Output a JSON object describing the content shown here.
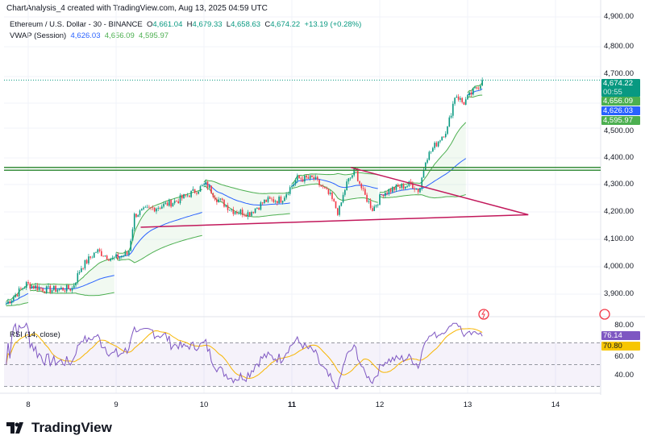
{
  "header": {
    "title": "ChartAnalysis_4 created with TradingView.com, Aug 13, 2025 04:59 UTC"
  },
  "legend": {
    "symbol": "Ethereum / U.S. Dollar - 30 - BINANCE",
    "o_label": "O",
    "o": "4,661.04",
    "h_label": "H",
    "h": "4,679.33",
    "l_label": "L",
    "l": "4,658.63",
    "c_label": "C",
    "c": "4,674.22",
    "change": "+13.19 (+0.28%)",
    "vwap_label": "VWAP (Session)",
    "vwap": "4,626.03",
    "vwap_upper": "4,656.09",
    "vwap_lower": "4,595.97"
  },
  "price_tags": {
    "last": "4,674.22",
    "countdown": "00:55",
    "upper": "4,656.09",
    "vwap": "4,626.03",
    "lower": "4,595.97"
  },
  "rsi": {
    "label": "RSI (14, close)",
    "value": "76.14",
    "ma": "70.80",
    "axis": [
      "80.00",
      "60.00",
      "40.00"
    ]
  },
  "colors": {
    "up": "#089981",
    "down": "#f23645",
    "vwap": "#2962ff",
    "band": "#4caf50",
    "rsi": "#7e57c2",
    "rsi_ma": "#f7b500",
    "trendline": "#c2185b",
    "level": "#388e3c"
  },
  "brand": "TradingView",
  "chart_data": {
    "type": "candlestick",
    "timeframe": "30",
    "x_ticks": [
      "8",
      "9",
      "10",
      "11",
      "12",
      "13",
      "14"
    ],
    "y_ticks": [
      "4,900.00",
      "4,800.00",
      "4,700.00",
      "4,500.00",
      "4,400.00",
      "4,300.00",
      "4,200.00",
      "4,100.00",
      "4,000.00",
      "3,900.00"
    ],
    "ylim": [
      3800,
      4960
    ],
    "close_path": [
      [
        7.75,
        3870
      ],
      [
        7.98,
        3940
      ],
      [
        8.2,
        3920
      ],
      [
        8.5,
        3925
      ],
      [
        8.6,
        4000
      ],
      [
        8.78,
        4060
      ],
      [
        8.96,
        4030
      ],
      [
        9.14,
        4050
      ],
      [
        9.21,
        4190
      ],
      [
        9.37,
        4210
      ],
      [
        9.5,
        4220
      ],
      [
        9.69,
        4240
      ],
      [
        9.87,
        4270
      ],
      [
        10.03,
        4300
      ],
      [
        10.14,
        4250
      ],
      [
        10.33,
        4205
      ],
      [
        10.51,
        4195
      ],
      [
        10.7,
        4240
      ],
      [
        10.88,
        4245
      ],
      [
        11.06,
        4320
      ],
      [
        11.25,
        4320
      ],
      [
        11.44,
        4255
      ],
      [
        11.53,
        4195
      ],
      [
        11.62,
        4300
      ],
      [
        11.72,
        4350
      ],
      [
        11.81,
        4270
      ],
      [
        11.92,
        4210
      ],
      [
        12.04,
        4270
      ],
      [
        12.17,
        4285
      ],
      [
        12.36,
        4300
      ],
      [
        12.45,
        4275
      ],
      [
        12.52,
        4390
      ],
      [
        12.63,
        4440
      ],
      [
        12.77,
        4500
      ],
      [
        12.86,
        4625
      ],
      [
        12.95,
        4590
      ],
      [
        13.04,
        4625
      ],
      [
        13.18,
        4674
      ]
    ],
    "levels": [
      4360,
      4350
    ],
    "triangle": {
      "upper": [
        [
          11.67,
          4360
        ],
        [
          13.69,
          4190
        ]
      ],
      "lower": [
        [
          9.28,
          4145
        ],
        [
          13.69,
          4190
        ]
      ]
    },
    "rsi": {
      "ylim": [
        30,
        90
      ],
      "bands": [
        70,
        50,
        30
      ]
    }
  }
}
